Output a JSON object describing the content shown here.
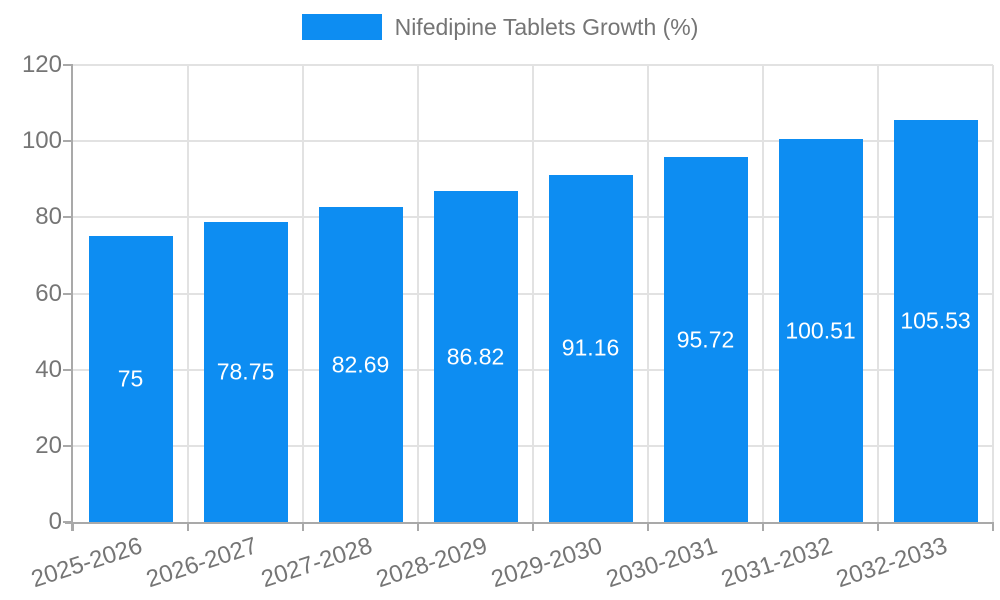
{
  "legend": {
    "label": "Nifedipine Tablets Growth (%)"
  },
  "chart_data": {
    "type": "bar",
    "series_name": "Nifedipine Tablets Growth (%)",
    "categories": [
      "2025-2026",
      "2026-2027",
      "2027-2028",
      "2028-2029",
      "2029-2030",
      "2030-2031",
      "2031-2032",
      "2032-2033"
    ],
    "values": [
      75,
      78.75,
      82.69,
      86.82,
      91.16,
      95.72,
      100.51,
      105.53
    ],
    "value_labels": [
      "75",
      "78.75",
      "82.69",
      "86.82",
      "91.16",
      "95.72",
      "100.51",
      "105.53"
    ],
    "xlabel": "",
    "ylabel": "",
    "ylim": [
      0,
      120
    ],
    "yticks": [
      0,
      20,
      40,
      60,
      80,
      100,
      120
    ],
    "ytick_labels": [
      "0",
      "20",
      "40",
      "60",
      "80",
      "100",
      "120"
    ],
    "grid": true,
    "legend_position": "top-center",
    "x_label_rotation_deg": -18,
    "colors": {
      "bar": "#0d8df2",
      "axis": "#a9a9a9",
      "grid": "#e2e2e2",
      "tick_text": "#757575",
      "value_text": "#ffffff",
      "background": "#ffffff"
    }
  }
}
